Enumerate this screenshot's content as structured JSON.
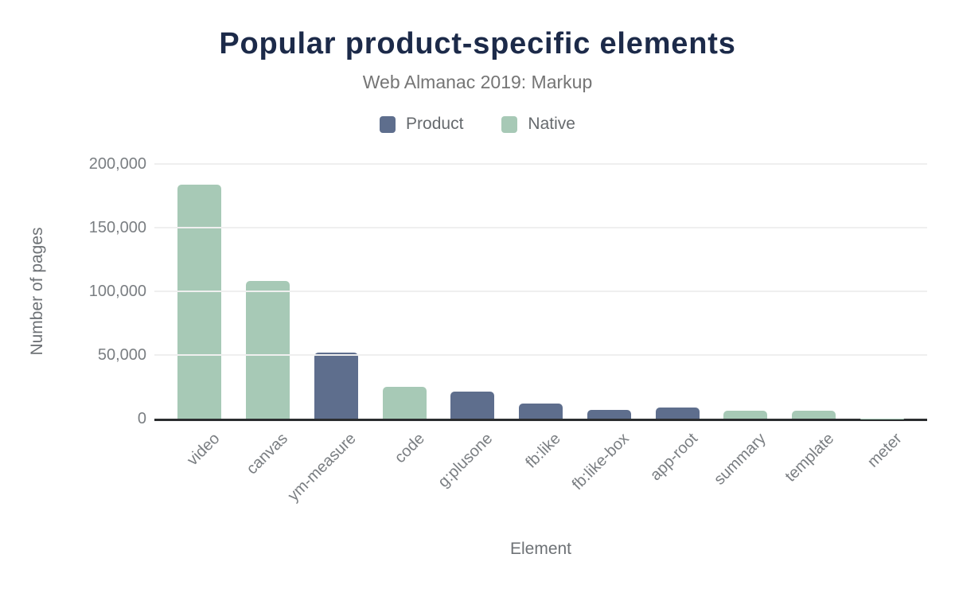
{
  "chart_data": {
    "type": "bar",
    "title": "Popular product-specific elements",
    "subtitle": "Web Almanac 2019: Markup",
    "xlabel": "Element",
    "ylabel": "Number of pages",
    "ylim": [
      0,
      200000
    ],
    "yticks": [
      0,
      50000,
      100000,
      150000,
      200000
    ],
    "grid": true,
    "legend_position": "top-center",
    "background_color": "#ffffff",
    "axis_line_color": "#2b2d2f",
    "gridline_color": "#efefef",
    "title_color": "#1c2a49",
    "subtitle_color": "#757575",
    "tick_label_color": "#7a7e82",
    "legend": [
      {
        "label": "Product",
        "color": "#5e6e8d"
      },
      {
        "label": "Native",
        "color": "#a7c9b6"
      }
    ],
    "categories": [
      "video",
      "canvas",
      "ym-measure",
      "code",
      "g:plusone",
      "fb:like",
      "fb:like-box",
      "app-root",
      "summary",
      "template",
      "meter"
    ],
    "points": [
      {
        "category": "video",
        "series": "Native",
        "value": 184000
      },
      {
        "category": "canvas",
        "series": "Native",
        "value": 108000
      },
      {
        "category": "ym-measure",
        "series": "Product",
        "value": 52000
      },
      {
        "category": "code",
        "series": "Native",
        "value": 25000
      },
      {
        "category": "g:plusone",
        "series": "Product",
        "value": 21000
      },
      {
        "category": "fb:like",
        "series": "Product",
        "value": 12000
      },
      {
        "category": "fb:like-box",
        "series": "Product",
        "value": 7000
      },
      {
        "category": "app-root",
        "series": "Product",
        "value": 8500
      },
      {
        "category": "summary",
        "series": "Native",
        "value": 6000
      },
      {
        "category": "template",
        "series": "Native",
        "value": 6000
      },
      {
        "category": "meter",
        "series": "Native",
        "value": 200
      }
    ]
  }
}
